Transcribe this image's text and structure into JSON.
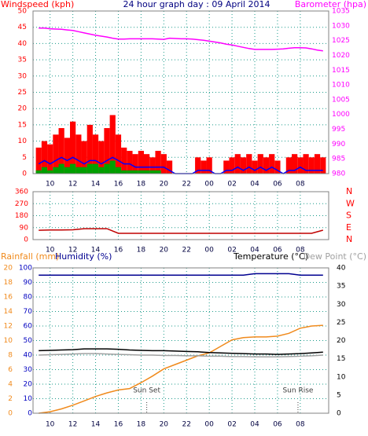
{
  "chart_data": [
    {
      "type": "combo",
      "title": "24 hour graph day : 09 April 2014",
      "ylabel": "Windspeed (kph)",
      "y2label": "Barometer (hpa)",
      "x": [
        9,
        9.5,
        10,
        10.5,
        11,
        11.5,
        12,
        12.5,
        13,
        13.5,
        14,
        14.5,
        15,
        15.5,
        16,
        16.5,
        17,
        17.5,
        18,
        18.5,
        19,
        19.5,
        20,
        20.5,
        21,
        21.5,
        22,
        22.5,
        23,
        23.5,
        24,
        24.5,
        25,
        25.5,
        26,
        26.5,
        27,
        27.5,
        28,
        28.5,
        29,
        29.5,
        30,
        30.5,
        31,
        31.5,
        32,
        32.5,
        33,
        33.5,
        34
      ],
      "series": [
        {
          "type": "bar",
          "color": "#ff0000",
          "values": [
            8,
            10,
            9,
            12,
            14,
            11,
            16,
            12,
            10,
            15,
            12,
            10,
            14,
            18,
            12,
            8,
            7,
            6,
            7,
            6,
            5,
            7,
            6,
            4,
            0,
            0,
            0,
            0,
            5,
            4,
            5,
            0,
            0,
            4,
            5,
            6,
            5,
            6,
            4,
            6,
            5,
            6,
            4,
            0,
            5,
            6,
            5,
            6,
            5,
            6,
            5
          ]
        },
        {
          "type": "bar",
          "color": "#00a000",
          "values": [
            1,
            2,
            1,
            2,
            3,
            2,
            3,
            2,
            2,
            3,
            3,
            2,
            3,
            4,
            2,
            1,
            1,
            1,
            1,
            1,
            1,
            1,
            0,
            0,
            0,
            0,
            0,
            0,
            0,
            0,
            0,
            0,
            0,
            0,
            0,
            0,
            0,
            0,
            0,
            0,
            0,
            0,
            0,
            0,
            0,
            0,
            0,
            0,
            0,
            0,
            0
          ]
        },
        {
          "type": "line",
          "color": "#0000ff",
          "values": [
            3,
            4,
            3,
            4,
            5,
            4,
            5,
            4,
            3,
            4,
            4,
            3,
            4,
            5,
            4,
            3,
            3,
            2,
            2,
            2,
            2,
            2,
            2,
            1,
            0,
            0,
            0,
            0,
            1,
            1,
            1,
            0,
            0,
            1,
            1,
            2,
            1,
            2,
            1,
            2,
            1,
            2,
            1,
            0,
            1,
            1,
            2,
            1,
            1,
            1,
            1
          ]
        },
        {
          "type": "line",
          "color": "#ff00ff",
          "axis": "y2",
          "values": [
            1029.2,
            1029.2,
            1029.0,
            1028.9,
            1028.8,
            1028.6,
            1028.4,
            1028.0,
            1027.6,
            1027.2,
            1026.8,
            1026.5,
            1026.2,
            1025.8,
            1025.5,
            1025.5,
            1025.6,
            1025.6,
            1025.6,
            1025.6,
            1025.6,
            1025.5,
            1025.4,
            1025.8,
            1025.7,
            1025.6,
            1025.6,
            1025.5,
            1025.3,
            1025.1,
            1024.8,
            1024.5,
            1024.2,
            1023.8,
            1023.5,
            1023.1,
            1022.7,
            1022.3,
            1022.0,
            1022.0,
            1022.0,
            1022.0,
            1022.1,
            1022.2,
            1022.4,
            1022.6,
            1022.6,
            1022.5,
            1022.2,
            1021.8,
            1021.5
          ]
        }
      ],
      "xlim": [
        8.5,
        34.5
      ],
      "xticks": [
        10,
        12,
        14,
        16,
        18,
        20,
        22,
        {
          "value": 24,
          "label": "00"
        },
        {
          "value": 26,
          "label": "02"
        },
        {
          "value": 28,
          "label": "04"
        },
        {
          "value": 30,
          "label": "06"
        },
        {
          "value": 32,
          "label": "08"
        }
      ],
      "ylim": [
        0,
        50
      ],
      "yticks": [
        0,
        5,
        10,
        15,
        20,
        25,
        30,
        35,
        40,
        45,
        50
      ],
      "y2lim": [
        980,
        1035
      ],
      "y2ticks": [
        980,
        985,
        990,
        995,
        1000,
        1005,
        1010,
        1015,
        1020,
        1025,
        1030,
        1035
      ],
      "grid": true
    },
    {
      "type": "line",
      "x": [
        9,
        10,
        11,
        12,
        13,
        14,
        15,
        16,
        17,
        18,
        19,
        20,
        21,
        22,
        23,
        24,
        25,
        26,
        27,
        28,
        29,
        30,
        31,
        32,
        33,
        34
      ],
      "series": [
        {
          "color": "#c00000",
          "values": [
            70,
            72,
            72,
            74,
            82,
            82,
            82,
            47,
            47,
            47,
            47,
            47,
            47,
            47,
            47,
            47,
            47,
            47,
            47,
            47,
            47,
            47,
            47,
            47,
            47,
            71
          ]
        }
      ],
      "xlim": [
        8.5,
        34.5
      ],
      "xticks": [
        10,
        12,
        14,
        16,
        18,
        20,
        22,
        {
          "value": 24,
          "label": "00"
        },
        {
          "value": 26,
          "label": "02"
        },
        {
          "value": 28,
          "label": "04"
        },
        {
          "value": 30,
          "label": "06"
        },
        {
          "value": 32,
          "label": "08"
        }
      ],
      "ylim": [
        0,
        360
      ],
      "yticks": [
        0,
        90,
        180,
        270,
        360
      ],
      "y2lim": [
        0,
        360
      ],
      "y2ticks": [
        {
          "value": 0,
          "label": "N"
        },
        {
          "value": 90,
          "label": "E"
        },
        {
          "value": 180,
          "label": "S"
        },
        {
          "value": 270,
          "label": "W"
        },
        {
          "value": 360,
          "label": "N"
        }
      ],
      "grid": true
    },
    {
      "type": "line",
      "x": [
        9,
        10,
        11,
        12,
        13,
        14,
        15,
        16,
        17,
        18,
        19,
        20,
        21,
        22,
        23,
        24,
        25,
        26,
        27,
        28,
        29,
        30,
        31,
        32,
        33,
        34
      ],
      "series": [
        {
          "name": "Rainfall (mm)",
          "color": "#f08a1c",
          "axis": "y3",
          "values": [
            0,
            0.2,
            0.6,
            1.1,
            1.7,
            2.3,
            2.8,
            3.2,
            3.4,
            4.2,
            5.1,
            6.1,
            6.7,
            7.3,
            7.9,
            8.3,
            9.2,
            10.1,
            10.4,
            10.5,
            10.5,
            10.6,
            11.0,
            11.7,
            12.0,
            12.1
          ]
        },
        {
          "name": "Humidity (%)",
          "color": "#000090",
          "values": [
            95,
            95,
            95,
            95,
            95,
            95,
            95,
            95,
            95,
            95,
            95,
            95,
            95,
            95,
            95,
            95,
            95,
            95,
            95,
            96,
            96,
            96,
            96,
            95,
            95,
            95
          ]
        },
        {
          "name": "Temperature (°C)",
          "color": "#000000",
          "axis": "y2",
          "values": [
            17.2,
            17.3,
            17.4,
            17.5,
            17.7,
            17.7,
            17.7,
            17.6,
            17.4,
            17.3,
            17.2,
            17.2,
            17.1,
            17.0,
            16.9,
            16.7,
            16.6,
            16.5,
            16.4,
            16.3,
            16.3,
            16.2,
            16.3,
            16.4,
            16.6,
            16.8
          ]
        },
        {
          "name": "Dew Point (°C)",
          "color": "#a0a0a0",
          "axis": "y2",
          "values": [
            16.0,
            16.1,
            16.2,
            16.3,
            16.4,
            16.4,
            16.3,
            16.2,
            16.1,
            16.0,
            16.0,
            15.9,
            15.9,
            15.8,
            15.8,
            15.7,
            15.7,
            15.6,
            15.6,
            15.5,
            15.5,
            15.5,
            15.6,
            15.7,
            15.8,
            16.0
          ]
        }
      ],
      "annotations": [
        {
          "text": "Sun Set",
          "x": 18.5
        },
        {
          "text": "Sun Rise",
          "x": 31.8
        }
      ],
      "xlim": [
        8.5,
        34.5
      ],
      "xticks": [
        10,
        12,
        14,
        16,
        18,
        20,
        22,
        {
          "value": 24,
          "label": "00"
        },
        {
          "value": 26,
          "label": "02"
        },
        {
          "value": 28,
          "label": "04"
        },
        {
          "value": 30,
          "label": "06"
        },
        {
          "value": 32,
          "label": "08"
        }
      ],
      "ylim": [
        0,
        100
      ],
      "yticks": [
        0,
        10,
        20,
        30,
        40,
        50,
        60,
        70,
        80,
        90,
        100
      ],
      "y3lim": [
        0,
        20
      ],
      "y3ticks": [
        0,
        2,
        4,
        6,
        8,
        10,
        12,
        14,
        16,
        18,
        20
      ],
      "y2lim": [
        0,
        40
      ],
      "y2ticks": [
        0,
        5,
        10,
        15,
        20,
        25,
        30,
        35,
        40
      ],
      "grid": true
    }
  ]
}
